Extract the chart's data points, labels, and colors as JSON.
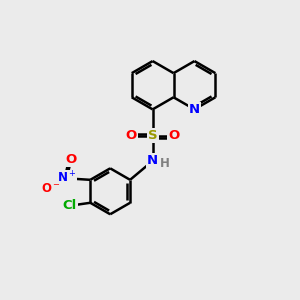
{
  "bg_color": "#ebebeb",
  "bond_color": "#000000",
  "N_color": "#0000ff",
  "O_color": "#ff0000",
  "S_color": "#999900",
  "Cl_color": "#00aa00",
  "NH_color": "#008888",
  "H_color": "#808080",
  "figsize": [
    3.0,
    3.0
  ],
  "dpi": 100,
  "xlim": [
    0,
    10
  ],
  "ylim": [
    0,
    10
  ]
}
